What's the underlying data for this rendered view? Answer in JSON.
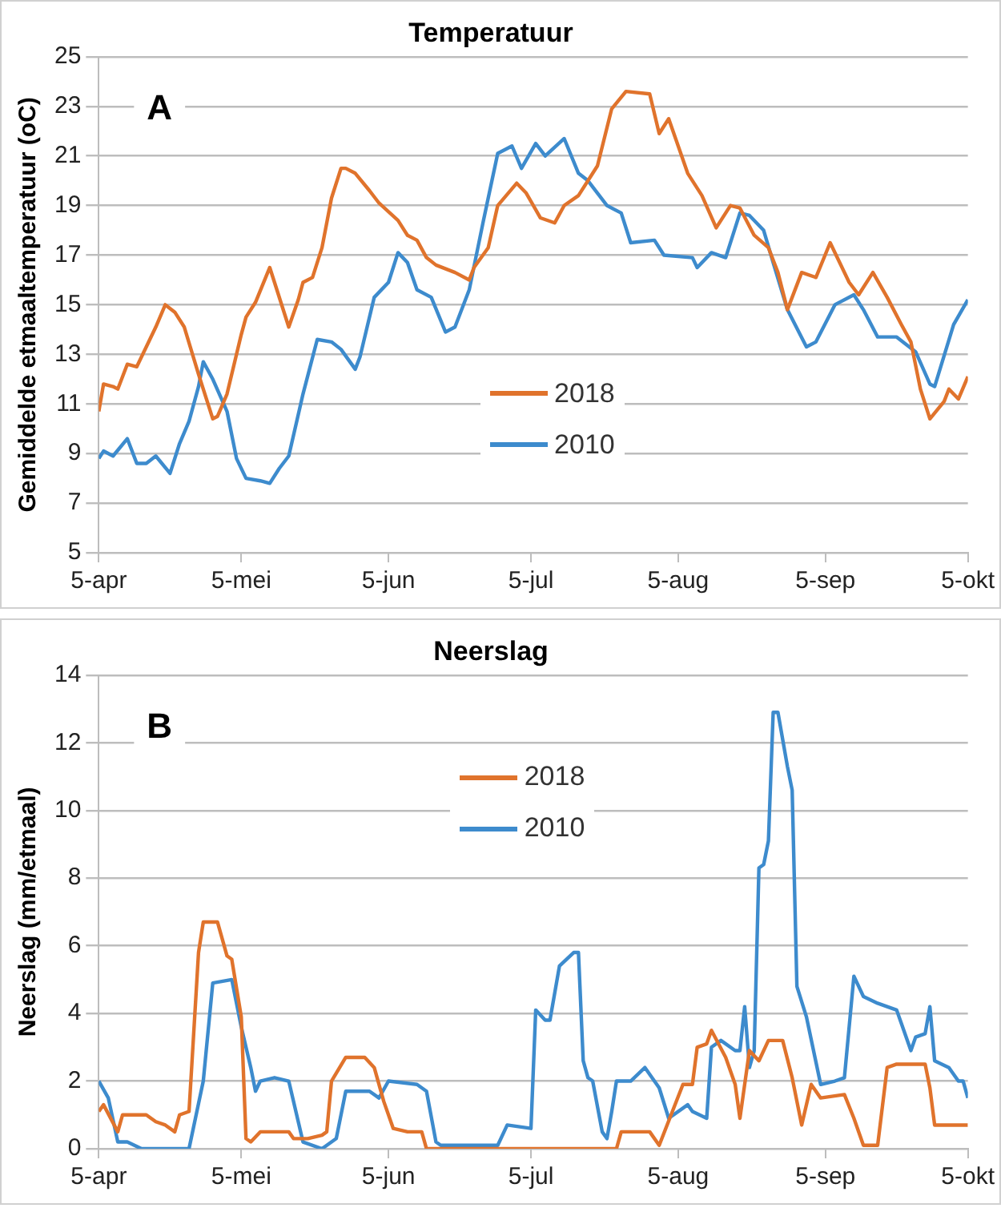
{
  "chart_data": [
    {
      "type": "line",
      "title": "Temperatuur",
      "ylabel": "Gemiddelde etmaaltemperatuur (oC)",
      "annotations": [
        "A"
      ],
      "xlim": [
        "--04-05",
        "--10-05"
      ],
      "xticks": [
        {
          "value": "--04-05",
          "label": "5-apr"
        },
        {
          "value": "--05-05",
          "label": "5-mei"
        },
        {
          "value": "--06-05",
          "label": "5-jun"
        },
        {
          "value": "--07-05",
          "label": "5-jul"
        },
        {
          "value": "--08-05",
          "label": "5-aug"
        },
        {
          "value": "--09-05",
          "label": "5-sep"
        },
        {
          "value": "--10-05",
          "label": "5-okt"
        }
      ],
      "ylim": [
        5,
        25
      ],
      "yticks": [
        5,
        7,
        9,
        11,
        13,
        15,
        17,
        19,
        21,
        23,
        25
      ],
      "grid": "y",
      "legend": "center",
      "marker": "none",
      "series": [
        {
          "name": "2018",
          "color": "#e0732c",
          "x": [
            "--04-05",
            "--04-06",
            "--04-08",
            "--04-09",
            "--04-11",
            "--04-13",
            "--04-15",
            "--04-17",
            "--04-19",
            "--04-21",
            "--04-23",
            "--04-26",
            "--04-29",
            "--04-30",
            "--05-02",
            "--05-05",
            "--05-06",
            "--05-08",
            "--05-11",
            "--05-12",
            "--05-15",
            "--05-17",
            "--05-18",
            "--05-20",
            "--05-22",
            "--05-24",
            "--05-26",
            "--05-27",
            "--05-29",
            "--06-01",
            "--06-03",
            "--06-07",
            "--06-09",
            "--06-11",
            "--06-13",
            "--06-15",
            "--06-19",
            "--06-22",
            "--06-23",
            "--06-26",
            "--06-28",
            "--07-02",
            "--07-04",
            "--07-07",
            "--07-10",
            "--07-12",
            "--07-15",
            "--07-19",
            "--07-22",
            "--07-25",
            "--07-30",
            "--08-01",
            "--08-03",
            "--08-05",
            "--08-07",
            "--08-10",
            "--08-13",
            "--08-14",
            "--08-16",
            "--08-18",
            "--08-21",
            "--08-24",
            "--08-26",
            "--08-28",
            "--08-31",
            "--09-03",
            "--09-06",
            "--09-10",
            "--09-12",
            "--09-15",
            "--09-18",
            "--09-21",
            "--09-23",
            "--09-25",
            "--09-27",
            "--09-30",
            "--10-01",
            "--10-03",
            "--10-05"
          ],
          "values": [
            10.7,
            11.8,
            11.7,
            11.6,
            12.6,
            12.5,
            13.3,
            14.1,
            15.0,
            14.7,
            14.1,
            12.2,
            10.4,
            10.5,
            11.4,
            13.8,
            14.5,
            15.1,
            16.5,
            15.9,
            14.1,
            15.2,
            15.9,
            16.1,
            17.3,
            19.3,
            20.5,
            20.5,
            20.3,
            19.6,
            19.1,
            18.4,
            17.8,
            17.6,
            16.9,
            16.6,
            16.3,
            16.0,
            16.5,
            17.3,
            19.0,
            19.9,
            19.5,
            18.5,
            18.3,
            19.0,
            19.4,
            20.6,
            22.9,
            23.6,
            23.5,
            21.9,
            22.5,
            21.4,
            20.3,
            19.4,
            18.1,
            18.4,
            19.0,
            18.9,
            17.8,
            17.3,
            16.3,
            14.8,
            16.3,
            16.1,
            17.5,
            15.9,
            15.4,
            16.3,
            15.3,
            14.2,
            13.5,
            11.6,
            10.4,
            11.1,
            11.6,
            11.2,
            12.1
          ]
        },
        {
          "name": "2010",
          "color": "#3d8bcd",
          "x": [
            "--04-05",
            "--04-06",
            "--04-08",
            "--04-11",
            "--04-13",
            "--04-15",
            "--04-17",
            "--04-20",
            "--04-22",
            "--04-24",
            "--04-26",
            "--04-27",
            "--04-29",
            "--05-02",
            "--05-04",
            "--05-06",
            "--05-09",
            "--05-11",
            "--05-13",
            "--05-15",
            "--05-18",
            "--05-21",
            "--05-24",
            "--05-26",
            "--05-29",
            "--05-30",
            "--06-02",
            "--06-05",
            "--06-07",
            "--06-09",
            "--06-11",
            "--06-14",
            "--06-17",
            "--06-19",
            "--06-22",
            "--06-25",
            "--06-28",
            "--07-01",
            "--07-03",
            "--07-06",
            "--07-08",
            "--07-12",
            "--07-15",
            "--07-17",
            "--07-21",
            "--07-24",
            "--07-26",
            "--07-31",
            "--08-02",
            "--08-08",
            "--08-09",
            "--08-12",
            "--08-15",
            "--08-18",
            "--08-20",
            "--08-23",
            "--08-25",
            "--08-28",
            "--09-01",
            "--09-03",
            "--09-07",
            "--09-11",
            "--09-13",
            "--09-16",
            "--09-20",
            "--09-24",
            "--09-27",
            "--09-28",
            "--10-02",
            "--10-05"
          ],
          "values": [
            8.8,
            9.1,
            8.9,
            9.6,
            8.6,
            8.6,
            8.9,
            8.2,
            9.4,
            10.3,
            11.7,
            12.7,
            12.0,
            10.7,
            8.8,
            8.0,
            7.9,
            7.8,
            8.4,
            8.9,
            11.4,
            13.6,
            13.5,
            13.2,
            12.4,
            12.9,
            15.3,
            15.9,
            17.1,
            16.7,
            15.6,
            15.3,
            13.9,
            14.1,
            15.6,
            18.4,
            21.1,
            21.4,
            20.5,
            21.5,
            21.0,
            21.7,
            20.3,
            20.0,
            19.0,
            18.7,
            17.5,
            17.6,
            17.0,
            16.9,
            16.5,
            17.1,
            16.9,
            18.7,
            18.6,
            18.0,
            16.7,
            14.8,
            13.3,
            13.5,
            15.0,
            15.4,
            14.8,
            13.7,
            13.7,
            13.1,
            11.8,
            11.7,
            14.2,
            15.2
          ]
        }
      ]
    },
    {
      "type": "line",
      "title": "Neerslag",
      "ylabel": "Neerslag (mm/etmaal)",
      "annotations": [
        "B"
      ],
      "xlim": [
        "--04-05",
        "--10-05"
      ],
      "xticks": [
        {
          "value": "--04-05",
          "label": "5-apr"
        },
        {
          "value": "--05-05",
          "label": "5-mei"
        },
        {
          "value": "--06-05",
          "label": "5-jun"
        },
        {
          "value": "--07-05",
          "label": "5-jul"
        },
        {
          "value": "--08-05",
          "label": "5-aug"
        },
        {
          "value": "--09-05",
          "label": "5-sep"
        },
        {
          "value": "--10-05",
          "label": "5-okt"
        }
      ],
      "ylim": [
        0,
        14
      ],
      "yticks": [
        0,
        2,
        4,
        6,
        8,
        10,
        12,
        14
      ],
      "grid": "y",
      "legend": "top",
      "marker": "none",
      "series": [
        {
          "name": "2018",
          "color": "#e0732c",
          "x": [
            "--04-05",
            "--04-06",
            "--04-09",
            "--04-10",
            "--04-15",
            "--04-17",
            "--04-19",
            "--04-21",
            "--04-22",
            "--04-24",
            "--04-26",
            "--04-27",
            "--04-30",
            "--05-02",
            "--05-03",
            "--05-05",
            "--05-06",
            "--05-07",
            "--05-09",
            "--05-15",
            "--05-16",
            "--05-19",
            "--05-22",
            "--05-23",
            "--05-24",
            "--05-27",
            "--05-31",
            "--06-02",
            "--06-04",
            "--06-06",
            "--06-09",
            "--06-12",
            "--06-13",
            "--07-23",
            "--07-24",
            "--07-30",
            "--08-01",
            "--08-06",
            "--08-08",
            "--08-09",
            "--08-11",
            "--08-12",
            "--08-15",
            "--08-17",
            "--08-18",
            "--08-20",
            "--08-22",
            "--08-24",
            "--08-27",
            "--08-29",
            "--08-31",
            "--09-02",
            "--09-04",
            "--09-09",
            "--09-11",
            "--09-13",
            "--09-16",
            "--09-18",
            "--09-20",
            "--09-26",
            "--09-27",
            "--09-28",
            "--10-05"
          ],
          "values": [
            1.1,
            1.3,
            0.5,
            1.0,
            1.0,
            0.8,
            0.7,
            0.5,
            1.0,
            1.1,
            5.8,
            6.7,
            6.7,
            5.7,
            5.6,
            3.9,
            0.3,
            0.2,
            0.5,
            0.5,
            0.3,
            0.3,
            0.4,
            0.5,
            2.0,
            2.7,
            2.7,
            2.4,
            1.4,
            0.6,
            0.5,
            0.5,
            0,
            0,
            0.5,
            0.5,
            0.1,
            1.9,
            1.9,
            3.0,
            3.1,
            3.5,
            2.7,
            1.9,
            0.9,
            2.9,
            2.6,
            3.2,
            3.2,
            2.1,
            0.7,
            1.9,
            1.5,
            1.6,
            0.9,
            0.1,
            0.1,
            2.4,
            2.5,
            2.5,
            1.8,
            0.7,
            0.7
          ]
        },
        {
          "name": "2010",
          "color": "#3d8bcd",
          "x": [
            "--04-05",
            "--04-07",
            "--04-09",
            "--04-11",
            "--04-14",
            "--04-24",
            "--04-27",
            "--04-29",
            "--05-03",
            "--05-05",
            "--05-07",
            "--05-08",
            "--05-09",
            "--05-12",
            "--05-15",
            "--05-18",
            "--05-22",
            "--05-25",
            "--05-27",
            "--06-01",
            "--06-03",
            "--06-05",
            "--06-11",
            "--06-13",
            "--06-15",
            "--06-16",
            "--06-28",
            "--06-30",
            "--07-05",
            "--07-06",
            "--07-08",
            "--07-09",
            "--07-11",
            "--07-14",
            "--07-15",
            "--07-16",
            "--07-17",
            "--07-18",
            "--07-20",
            "--07-21",
            "--07-22",
            "--07-23",
            "--07-26",
            "--07-29",
            "--08-01",
            "--08-03",
            "--08-07",
            "--08-08",
            "--08-11",
            "--08-12",
            "--08-14",
            "--08-17",
            "--08-18",
            "--08-19",
            "--08-20",
            "--08-21",
            "--08-22",
            "--08-23",
            "--08-24",
            "--08-25",
            "--08-26",
            "--08-28",
            "--08-29",
            "--08-30",
            "--09-01",
            "--09-04",
            "--09-07",
            "--09-09",
            "--09-11",
            "--09-13",
            "--09-16",
            "--09-20",
            "--09-23",
            "--09-24",
            "--09-26",
            "--09-27",
            "--09-28",
            "--10-01",
            "--10-03",
            "--10-04",
            "--10-05"
          ],
          "values": [
            2.0,
            1.5,
            0.2,
            0.2,
            0,
            0,
            2.0,
            4.9,
            5.0,
            3.6,
            2.4,
            1.7,
            2.0,
            2.1,
            2.0,
            0.2,
            0,
            0.3,
            1.7,
            1.7,
            1.5,
            2.0,
            1.9,
            1.7,
            0.2,
            0.1,
            0.1,
            0.7,
            0.6,
            4.1,
            3.8,
            3.8,
            5.4,
            5.8,
            5.8,
            2.6,
            2.1,
            2.0,
            0.5,
            0.3,
            1.1,
            2.0,
            2.0,
            2.4,
            1.8,
            0.9,
            1.3,
            1.1,
            0.9,
            3.0,
            3.2,
            2.9,
            2.9,
            4.2,
            2.4,
            2.9,
            8.3,
            8.4,
            9.1,
            12.9,
            12.9,
            11.3,
            10.6,
            4.8,
            3.9,
            1.9,
            2.0,
            2.1,
            5.1,
            4.5,
            4.3,
            4.1,
            2.9,
            3.3,
            3.4,
            4.2,
            2.6,
            2.4,
            2.0,
            2.0,
            1.5
          ]
        }
      ]
    }
  ]
}
